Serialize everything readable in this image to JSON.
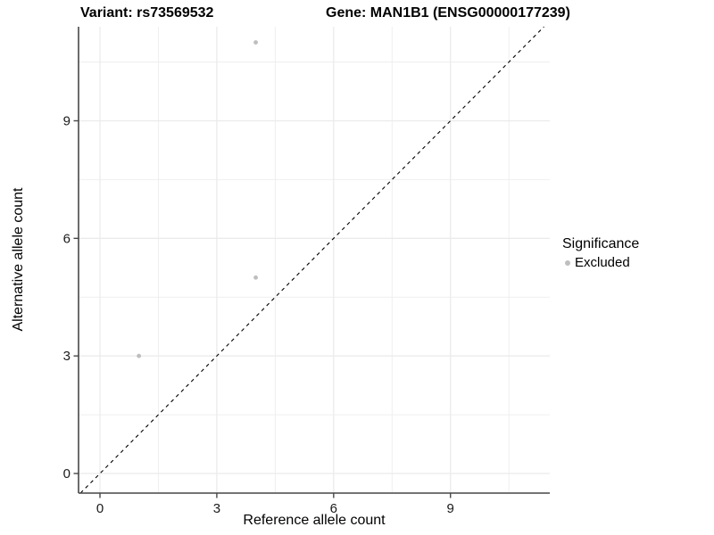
{
  "titles": {
    "variant": "Variant: rs73569532",
    "gene": "Gene: MAN1B1 (ENSG00000177239)"
  },
  "chart_data": {
    "type": "scatter",
    "title": "Variant: rs73569532    Gene: MAN1B1 (ENSG00000177239)",
    "xlabel": "Reference allele count",
    "ylabel": "Alternative allele count",
    "xlim": [
      -0.55,
      11.55
    ],
    "ylim": [
      -0.5,
      11.4
    ],
    "xticks": [
      0,
      3,
      6,
      9
    ],
    "yticks": [
      0,
      3,
      6,
      9
    ],
    "minor_xticks": [
      1.5,
      4.5,
      7.5,
      10.5
    ],
    "minor_yticks": [
      1.5,
      4.5,
      7.5,
      10.5
    ],
    "grid": true,
    "series": [
      {
        "name": "Excluded",
        "color": "#bebebe",
        "points": [
          {
            "x": 4,
            "y": 11
          },
          {
            "x": 4,
            "y": 5
          },
          {
            "x": 1,
            "y": 3
          }
        ]
      }
    ],
    "identity_line": {
      "type": "y=x",
      "style": "dashed",
      "color": "#000000"
    },
    "legend_position": "right"
  },
  "legend": {
    "title": "Significance",
    "items": [
      {
        "label": "Excluded",
        "color": "#bebebe"
      }
    ]
  },
  "colors": {
    "grid": "#ebebeb",
    "axis": "#474747",
    "tick_text": "#1a1a1a",
    "point": "#bebebe",
    "diagonal": "#000000"
  }
}
